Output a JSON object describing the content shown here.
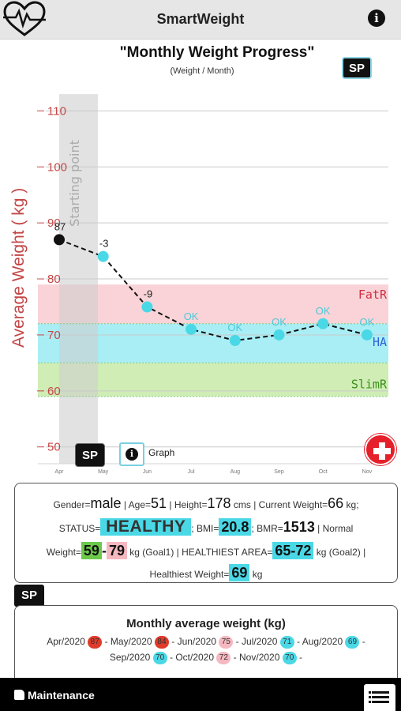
{
  "app": {
    "title": "SmartWeight"
  },
  "chart": {
    "title": "\"Monthly Weight Progress\"",
    "subtitle": "(Weight / Month)",
    "sp_label": "SP",
    "y_axis_title": "Average Weight ( kg )",
    "start_point_label": "Starting point",
    "graph_label": "Graph",
    "zones": [
      {
        "name": "FatR",
        "from": 72,
        "to": 79,
        "color": "#f9d3d8",
        "label_color": "#d0303f"
      },
      {
        "name": "HA",
        "from": 65,
        "to": 72,
        "color": "#a9eef5",
        "label_color": "#2f64d8"
      },
      {
        "name": "SlimR",
        "from": 59,
        "to": 65,
        "color": "#cfedb5",
        "label_color": "#3c8f1c"
      }
    ]
  },
  "chart_data": {
    "type": "line",
    "title": "\"Monthly Weight Progress\"",
    "subtitle": "(Weight / Month)",
    "xlabel": "",
    "ylabel": "Average Weight ( kg )",
    "ylim": [
      47,
      114
    ],
    "y_ticks": [
      "110",
      "100",
      "90",
      "80",
      "70",
      "60",
      "50"
    ],
    "y_tick_values": [
      110,
      100,
      90,
      80,
      70,
      60,
      50
    ],
    "categories": [
      "Apr",
      "May",
      "Jun",
      "Jul",
      "Aug",
      "Sep",
      "Oct",
      "Nov"
    ],
    "values": [
      87,
      84,
      75,
      71,
      69,
      70,
      72,
      70
    ],
    "point_labels": [
      "87",
      "-3",
      "-9",
      "OK",
      "OK",
      "OK",
      "OK",
      "OK"
    ],
    "point_colors": [
      "#111111",
      "#4ad8e6",
      "#4ad8e6",
      "#4ad8e6",
      "#4ad8e6",
      "#4ad8e6",
      "#4ad8e6",
      "#4ad8e6"
    ],
    "grid": true,
    "line_style": "dashed"
  },
  "summary": {
    "gender_label": "Gender=",
    "gender_value": "male",
    "age_label": " | Age=",
    "age_value": "51",
    "height_label": " | Height=",
    "height_value": "178",
    "height_unit": " cms | Current Weight=",
    "current_weight_value": "66",
    "current_weight_unit": " kg;",
    "status_label": "STATUS=",
    "status_value": "HEALTHY",
    "bmi_label": "; BMI=",
    "bmi_value": "20.8",
    "bmr_label": "; BMR=",
    "bmr_value": "1513",
    "bmr_suffix": " | Normal",
    "weight_label": "Weight=",
    "goal1_low": "59",
    "goal1_dash": "-",
    "goal1_high": "79",
    "goal1_suffix": " kg (Goal1) | HEALTHIEST AREA=",
    "goal2_range": "65-72",
    "goal2_suffix": " kg (Goal2) |",
    "healthiest_label": "Healthiest Weight=",
    "healthiest_value": "69",
    "healthiest_unit": " kg"
  },
  "sp_mid_label": "SP",
  "monthly": {
    "title": "Monthly average weight (kg)",
    "months": [
      {
        "label": "Apr/2020",
        "value": "87",
        "color": "#e03a2a"
      },
      {
        "label": "May/2020",
        "value": "84",
        "color": "#e03a2a"
      },
      {
        "label": "Jun/2020",
        "value": "75",
        "color": "#f5b8c0"
      },
      {
        "label": "Jul/2020",
        "value": "71",
        "color": "#4ad8e6"
      },
      {
        "label": "Aug/2020",
        "value": "69",
        "color": "#4ad8e6"
      },
      {
        "label": "Sep/2020",
        "value": "70",
        "color": "#4ad8e6"
      },
      {
        "label": "Oct/2020",
        "value": "72",
        "color": "#f5b8c0"
      },
      {
        "label": "Nov/2020",
        "value": "70",
        "color": "#4ad8e6"
      }
    ]
  },
  "footer": {
    "left_label": "Maintenance"
  }
}
